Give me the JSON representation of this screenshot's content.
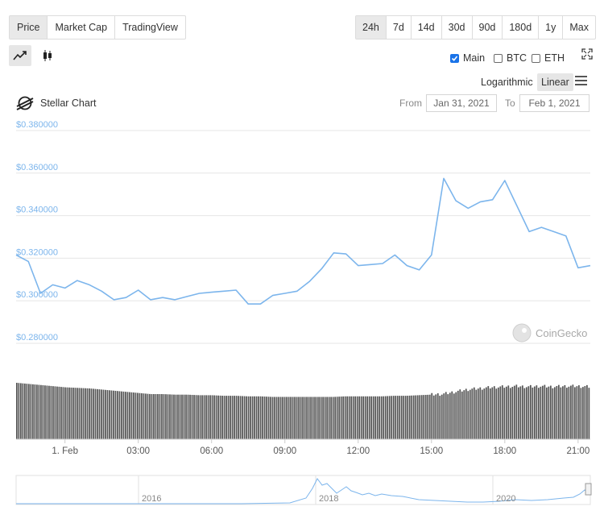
{
  "tabs": [
    "Price",
    "Market Cap",
    "TradingView"
  ],
  "ranges": [
    "24h",
    "7d",
    "14d",
    "30d",
    "90d",
    "180d",
    "1y",
    "Max"
  ],
  "selected_tab": "Price",
  "selected_range": "24h",
  "series_toggles": [
    {
      "label": "Main",
      "checked": true
    },
    {
      "label": "BTC",
      "checked": false
    },
    {
      "label": "ETH",
      "checked": false
    }
  ],
  "scale": {
    "logarithmic": "Logarithmic",
    "linear": "Linear",
    "selected": "Linear"
  },
  "chart_title": "Stellar Chart",
  "date_range": {
    "from_label": "From",
    "from": "Jan 31, 2021",
    "to_label": "To",
    "to": "Feb 1, 2021"
  },
  "watermark": "CoinGecko",
  "icons": {
    "line_chart": "line-chart-icon",
    "candlestick": "candlestick-icon",
    "fullscreen": "fullscreen-icon",
    "menu": "hamburger-menu-icon",
    "logo": "stellar-logo-icon",
    "coingecko": "coingecko-logo-icon"
  },
  "colors": {
    "line": "#7cb5ec",
    "volume": "#555555",
    "axis_label": "#7cb5ec",
    "navigator": "#7cb5ec"
  },
  "chart_data": {
    "type": "line",
    "title": "Stellar Chart",
    "series": [
      {
        "name": "Main",
        "x": [
          "31 Jan 22:00",
          "31 Jan 22:30",
          "31 Jan 23:00",
          "31 Jan 23:30",
          "1 Feb 00:00",
          "1 Feb 00:30",
          "1 Feb 01:00",
          "1 Feb 01:30",
          "1 Feb 02:00",
          "1 Feb 02:30",
          "1 Feb 03:00",
          "1 Feb 03:30",
          "1 Feb 04:00",
          "1 Feb 04:30",
          "1 Feb 05:00",
          "1 Feb 05:30",
          "1 Feb 06:00",
          "1 Feb 06:30",
          "1 Feb 07:00",
          "1 Feb 07:30",
          "1 Feb 08:00",
          "1 Feb 08:30",
          "1 Feb 09:00",
          "1 Feb 09:30",
          "1 Feb 10:00",
          "1 Feb 10:30",
          "1 Feb 11:00",
          "1 Feb 11:30",
          "1 Feb 12:00",
          "1 Feb 12:30",
          "1 Feb 13:00",
          "1 Feb 13:30",
          "1 Feb 14:00",
          "1 Feb 14:30",
          "1 Feb 15:00",
          "1 Feb 15:30",
          "1 Feb 16:00",
          "1 Feb 16:30",
          "1 Feb 17:00",
          "1 Feb 17:30",
          "1 Feb 18:00",
          "1 Feb 18:30",
          "1 Feb 19:00",
          "1 Feb 19:30",
          "1 Feb 20:00",
          "1 Feb 20:30",
          "1 Feb 21:00",
          "1 Feb 21:30"
        ],
        "values": [
          0.3215,
          0.3185,
          0.3035,
          0.3075,
          0.306,
          0.3095,
          0.3075,
          0.3045,
          0.3005,
          0.3015,
          0.305,
          0.3005,
          0.3015,
          0.3005,
          0.302,
          0.3035,
          0.304,
          0.3045,
          0.305,
          0.2985,
          0.2985,
          0.3025,
          0.3035,
          0.3045,
          0.309,
          0.315,
          0.3225,
          0.322,
          0.3165,
          0.317,
          0.3175,
          0.3215,
          0.3165,
          0.3145,
          0.3215,
          0.3575,
          0.347,
          0.3435,
          0.3465,
          0.3475,
          0.3565,
          0.3445,
          0.3325,
          0.3345,
          0.3325,
          0.3305,
          0.3155,
          0.3165
        ]
      }
    ],
    "volume_series": {
      "name": "Volume",
      "values": [
        100,
        98,
        96,
        94,
        92,
        91,
        90,
        88,
        86,
        84,
        82,
        80,
        80,
        79,
        79,
        78,
        78,
        77,
        77,
        76,
        76,
        75,
        75,
        75,
        75,
        75,
        75,
        76,
        76,
        76,
        76,
        77,
        77,
        78,
        79,
        80,
        84,
        88,
        90,
        92,
        93,
        94,
        93,
        94,
        93,
        94,
        94,
        93
      ]
    },
    "xaxis_ticks": [
      "1. Feb",
      "03:00",
      "06:00",
      "09:00",
      "12:00",
      "15:00",
      "18:00",
      "21:00"
    ],
    "yaxis_ticks": [
      "$0.280000",
      "$0.300000",
      "$0.320000",
      "$0.340000",
      "$0.360000",
      "$0.380000"
    ],
    "ylim": [
      0.28,
      0.38
    ],
    "navigator_ticks": [
      "2016",
      "2018",
      "2020"
    ],
    "grid": true,
    "legend": "none"
  }
}
